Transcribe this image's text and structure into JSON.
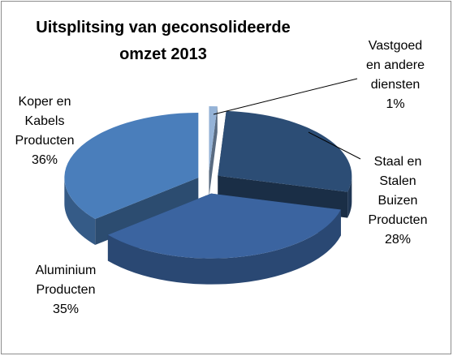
{
  "chart_data": {
    "type": "pie3d",
    "title": "Uitsplitsing van geconsolideerde omzet 2013",
    "categories": [
      "Vastgoed en andere diensten",
      "Staal en Stalen Buizen Producten",
      "Aluminium Producten",
      "Koper en Kabels Producten"
    ],
    "values": [
      1,
      28,
      35,
      36
    ],
    "value_labels": [
      "1%",
      "28%",
      "35%",
      "36%"
    ],
    "colors": [
      "#95b3d7",
      "#2c4d75",
      "#3b64a0",
      "#4a7ebb"
    ]
  }
}
